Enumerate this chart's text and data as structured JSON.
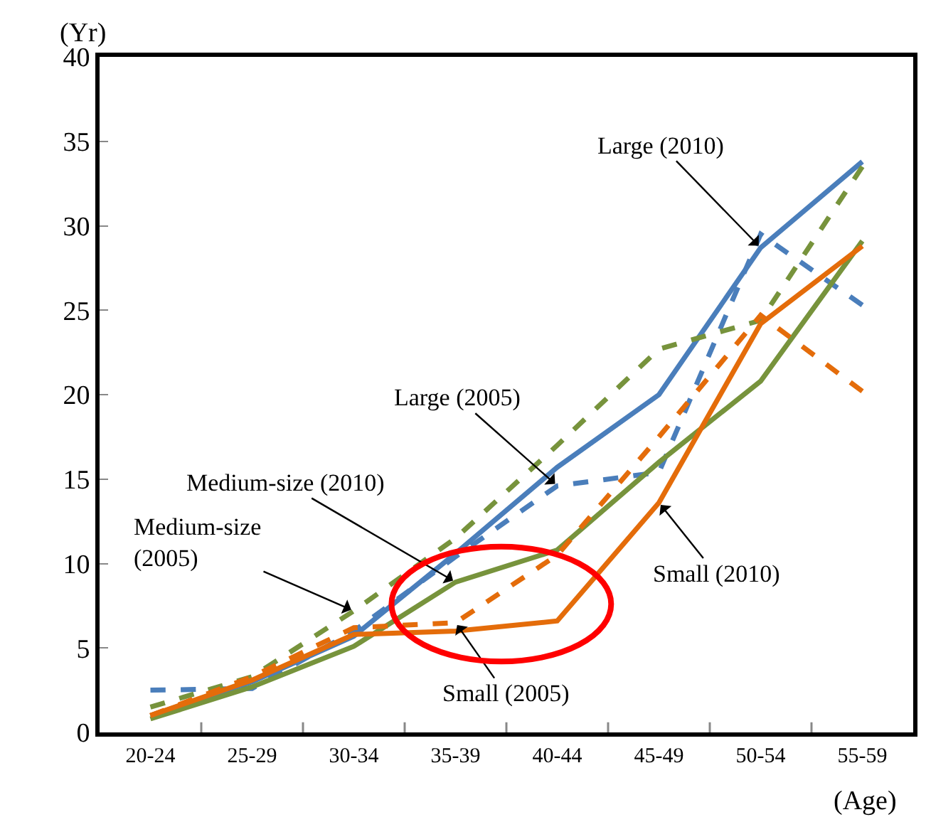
{
  "chart_data": {
    "type": "line",
    "xlabel": "(Age)",
    "ylabel": "(Yr)",
    "categories": [
      "20-24",
      "25-29",
      "30-34",
      "35-39",
      "40-44",
      "45-49",
      "50-54",
      "55-59"
    ],
    "series": [
      {
        "color": "#4a7ebb",
        "line_style": "solid",
        "values": [
          1.0,
          3.0,
          5.7,
          10.6,
          15.7,
          20.0,
          28.7,
          33.8
        ]
      },
      {
        "color": "#4a7ebb",
        "line_style": "dashed",
        "values": [
          2.5,
          2.6,
          6.0,
          10.4,
          14.6,
          15.4,
          29.5,
          25.3
        ]
      },
      {
        "color": "#77933c",
        "line_style": "solid",
        "values": [
          0.8,
          2.7,
          5.1,
          8.9,
          10.8,
          16.0,
          20.8,
          29.1
        ]
      },
      {
        "color": "#77933c",
        "line_style": "dashed",
        "values": [
          1.5,
          3.3,
          7.2,
          11.5,
          17.0,
          22.7,
          24.4,
          33.5
        ]
      },
      {
        "color": "#e46c0a",
        "line_style": "solid",
        "values": [
          1.0,
          3.1,
          5.8,
          6.0,
          6.6,
          13.6,
          24.2,
          28.8
        ]
      },
      {
        "color": "#e46c0a",
        "line_style": "dashed",
        "values": [
          1.0,
          3.3,
          6.2,
          6.5,
          10.5,
          17.5,
          24.7,
          20.2
        ]
      }
    ],
    "ylim": [
      0,
      40
    ],
    "yticks": [
      0,
      5,
      10,
      15,
      20,
      25,
      30,
      35,
      40
    ],
    "grid": false,
    "marker": "none",
    "annotations": [
      {
        "text": "Large (2010)",
        "x": "50-54",
        "y": 28.7
      },
      {
        "text": "Large (2005)",
        "x": "40-44",
        "y": 14.6
      },
      {
        "text": "Medium-size (2010)",
        "x": "35-39",
        "y": 8.9
      },
      {
        "text": "Medium-size\n(2005)",
        "x": "30-34",
        "y": 7.2
      },
      {
        "text": "Small (2005)",
        "x": "35-39",
        "y": 6.5
      },
      {
        "text": "Small (2010)",
        "x": "45-49",
        "y": 13.6
      }
    ]
  }
}
